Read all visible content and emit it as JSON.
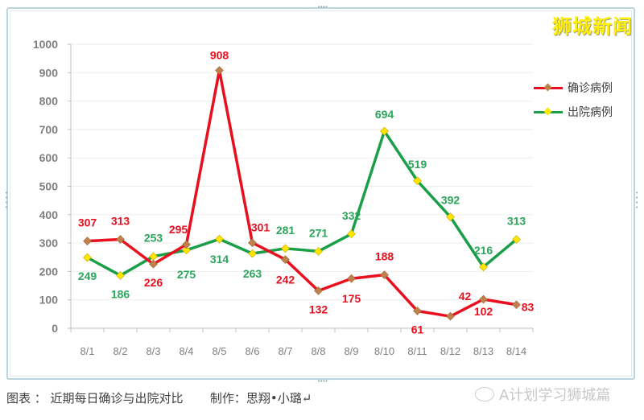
{
  "brand": {
    "text": "狮城新闻"
  },
  "caption": {
    "text": "图表 ： 近期每日确诊与出院对比       制作：思翔•小璐↵"
  },
  "watermark": {
    "text": "A计划学习狮城篇",
    "icon": "wechat-icon"
  },
  "legend": {
    "items": [
      {
        "label": "确诊病例",
        "color": "#e8101e",
        "marker_color": "#c0804c"
      },
      {
        "label": "出院病例",
        "color": "#1a9e48",
        "marker_color": "#ffe600"
      }
    ]
  },
  "chart_data": {
    "type": "line",
    "title": "",
    "xlabel": "",
    "ylabel": "",
    "ylim": [
      0,
      1000
    ],
    "yticks": [
      0,
      100,
      200,
      300,
      400,
      500,
      600,
      700,
      800,
      900,
      1000
    ],
    "grid": true,
    "legend_position": "right",
    "categories": [
      "8/1",
      "8/2",
      "8/3",
      "8/4",
      "8/5",
      "8/6",
      "8/7",
      "8/8",
      "8/9",
      "8/10",
      "8/11",
      "8/12",
      "8/13",
      "8/14"
    ],
    "series": [
      {
        "name": "确诊病例",
        "color": "#e8101e",
        "values": [
          307,
          313,
          226,
          295,
          908,
          301,
          242,
          132,
          175,
          188,
          61,
          42,
          102,
          83
        ]
      },
      {
        "name": "出院病例",
        "color": "#1a9e48",
        "values": [
          249,
          186,
          253,
          275,
          314,
          263,
          281,
          271,
          332,
          694,
          519,
          392,
          216,
          313
        ]
      }
    ]
  },
  "colors": {
    "confirmed_line": "#e8101e",
    "confirmed_label": "#e8101e",
    "discharged_line": "#1a9e48",
    "discharged_label": "#2aa55a",
    "axis_text": "#7f7f7f",
    "frame": "#b9d6de",
    "brand": "#ffef00"
  }
}
